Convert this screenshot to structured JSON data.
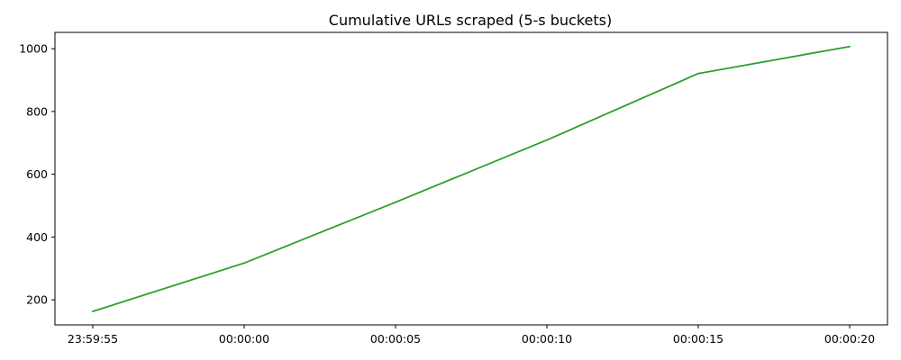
{
  "chart_data": {
    "type": "line",
    "title": "Cumulative URLs scraped (5-s buckets)",
    "xlabel": "",
    "ylabel": "",
    "x": [
      "23:59:55",
      "00:00:00",
      "00:00:05",
      "00:00:10",
      "00:00:15",
      "00:00:20"
    ],
    "x_tick_labels": [
      "23:59:55",
      "00:00:00",
      "00:00:05",
      "00:00:10",
      "00:00:15",
      "00:00:20"
    ],
    "y_ticks": [
      200,
      400,
      600,
      800,
      1000
    ],
    "ylim": [
      120,
      1052
    ],
    "grid": false,
    "legend": "none",
    "series": [
      {
        "values": [
          163,
          317,
          511,
          709,
          921,
          1007
        ],
        "color": "#2ca02c"
      }
    ]
  }
}
